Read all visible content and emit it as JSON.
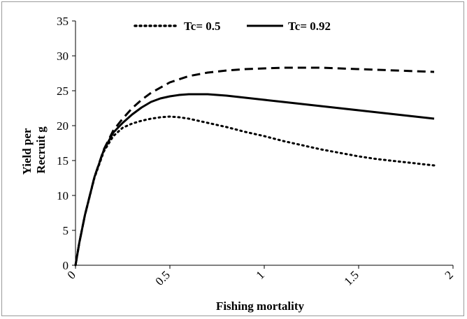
{
  "chart_data": {
    "type": "line",
    "title": "",
    "xlabel": "Fishing mortality",
    "ylabel_lines": [
      "Yield per",
      "Recruit g"
    ],
    "xlim": [
      0,
      2
    ],
    "ylim": [
      0,
      35
    ],
    "x_ticks": [
      "0",
      "0.5",
      "1",
      "1.5",
      "2"
    ],
    "y_ticks": [
      "0",
      "5",
      "10",
      "15",
      "20",
      "25",
      "30",
      "35"
    ],
    "grid": false,
    "legend_position": "top",
    "series": [
      {
        "name": "Tc= 0.5",
        "style": "dotted",
        "x": [
          0,
          0.02,
          0.05,
          0.1,
          0.15,
          0.2,
          0.25,
          0.3,
          0.35,
          0.4,
          0.45,
          0.5,
          0.55,
          0.6,
          0.7,
          0.8,
          0.9,
          1.0,
          1.1,
          1.2,
          1.3,
          1.4,
          1.5,
          1.6,
          1.7,
          1.8,
          1.9
        ],
        "values": [
          0,
          3.2,
          7.2,
          12.5,
          16.3,
          18.5,
          19.7,
          20.3,
          20.7,
          21.0,
          21.2,
          21.3,
          21.2,
          21.0,
          20.4,
          19.8,
          19.1,
          18.5,
          17.8,
          17.2,
          16.6,
          16.1,
          15.6,
          15.2,
          14.9,
          14.6,
          14.3
        ]
      },
      {
        "name": "Tc= 0.92",
        "style": "solid",
        "x": [
          0,
          0.02,
          0.05,
          0.1,
          0.15,
          0.2,
          0.25,
          0.3,
          0.35,
          0.4,
          0.45,
          0.5,
          0.55,
          0.6,
          0.7,
          0.75,
          0.8,
          0.9,
          1.0,
          1.1,
          1.2,
          1.3,
          1.4,
          1.5,
          1.6,
          1.7,
          1.8,
          1.9
        ],
        "values": [
          0,
          3.2,
          7.2,
          12.6,
          16.5,
          19.0,
          20.4,
          21.6,
          22.6,
          23.4,
          23.9,
          24.2,
          24.4,
          24.5,
          24.5,
          24.4,
          24.3,
          24.0,
          23.7,
          23.4,
          23.1,
          22.8,
          22.5,
          22.2,
          21.9,
          21.6,
          21.3,
          21.0
        ]
      },
      {
        "style": "dashed",
        "x": [
          0,
          0.02,
          0.05,
          0.1,
          0.15,
          0.2,
          0.25,
          0.3,
          0.35,
          0.4,
          0.5,
          0.6,
          0.7,
          0.8,
          0.9,
          1.0,
          1.1,
          1.2,
          1.3,
          1.4,
          1.5,
          1.6,
          1.7,
          1.8,
          1.9
        ],
        "values": [
          0,
          3.2,
          7.2,
          12.6,
          16.6,
          19.3,
          21.0,
          22.5,
          23.7,
          24.7,
          26.2,
          27.1,
          27.6,
          27.9,
          28.1,
          28.2,
          28.3,
          28.3,
          28.3,
          28.2,
          28.1,
          28.0,
          27.9,
          27.8,
          27.7
        ]
      }
    ]
  }
}
